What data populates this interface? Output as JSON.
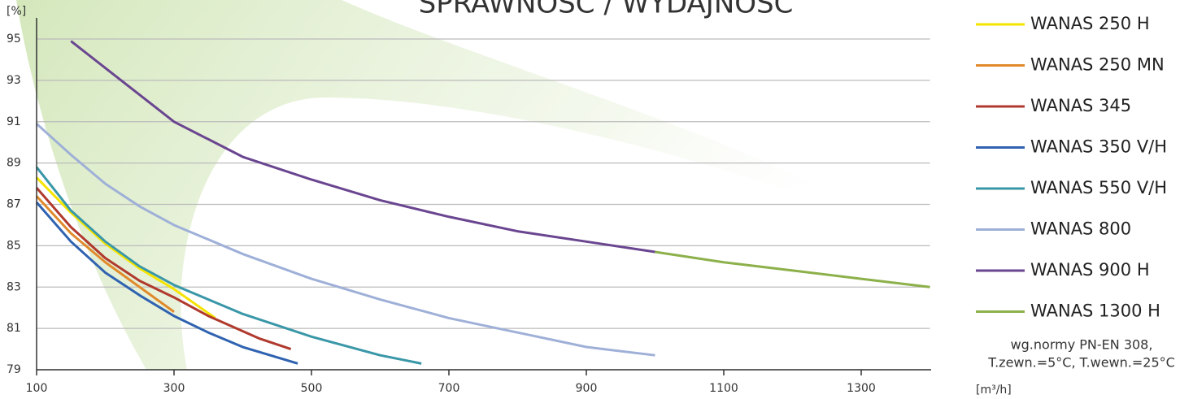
{
  "chart_data": {
    "type": "line",
    "title": "SPRAWNOŚĆ / WYDAJNOŚĆ",
    "y_label": "[%]",
    "x_label": "[m³/h]",
    "note": [
      "wg.normy PN-EN 308,",
      "T.zewn.=5°C, T.wewn.=25°C"
    ],
    "xlim": [
      100,
      1400
    ],
    "xticks": [
      100,
      300,
      500,
      700,
      900,
      1100,
      1300
    ],
    "ylim": [
      79,
      96
    ],
    "yticks": [
      79,
      81,
      83,
      85,
      87,
      89,
      91,
      93,
      95
    ],
    "grid": true,
    "legend": "right",
    "series": [
      {
        "name": "WANAS 250 H",
        "color": "#f5e400",
        "x": [
          100,
          150,
          200,
          250,
          300,
          360
        ],
        "values": [
          88.3,
          86.6,
          85.1,
          83.9,
          82.9,
          81.5
        ]
      },
      {
        "name": "WANAS 250 MN",
        "color": "#e08a2c",
        "x": [
          100,
          150,
          200,
          250,
          300
        ],
        "values": [
          87.4,
          85.6,
          84.2,
          83.0,
          81.8
        ]
      },
      {
        "name": "WANAS 345",
        "color": "#b03a2e",
        "x": [
          100,
          150,
          200,
          250,
          300,
          350,
          425,
          470
        ],
        "values": [
          87.8,
          85.9,
          84.4,
          83.3,
          82.5,
          81.6,
          80.5,
          80.0
        ]
      },
      {
        "name": "WANAS 350 V/H",
        "color": "#2f62b0",
        "x": [
          100,
          150,
          200,
          250,
          300,
          350,
          400,
          480
        ],
        "values": [
          87.1,
          85.2,
          83.7,
          82.6,
          81.6,
          80.8,
          80.1,
          79.3
        ]
      },
      {
        "name": "WANAS 550 V/H",
        "color": "#3a97a8",
        "x": [
          100,
          150,
          200,
          250,
          300,
          400,
          500,
          600,
          660
        ],
        "values": [
          88.8,
          86.7,
          85.2,
          84.0,
          83.1,
          81.7,
          80.6,
          79.7,
          79.3
        ]
      },
      {
        "name": "WANAS 800",
        "color": "#9fb0d8",
        "x": [
          100,
          150,
          200,
          250,
          300,
          400,
          500,
          600,
          700,
          800,
          900,
          1000
        ],
        "values": [
          90.9,
          89.4,
          88.0,
          86.9,
          86.0,
          84.6,
          83.4,
          82.4,
          81.5,
          80.8,
          80.1,
          79.7
        ]
      },
      {
        "name": "WANAS 900 H",
        "color": "#6a4590",
        "x": [
          150,
          200,
          300,
          400,
          500,
          600,
          700,
          800,
          900,
          1000
        ],
        "values": [
          94.9,
          93.6,
          91.0,
          89.3,
          88.2,
          87.2,
          86.4,
          85.7,
          85.2,
          84.7
        ]
      },
      {
        "name": "WANAS 1300 H",
        "color": "#8cb04a",
        "x": [
          1000,
          1100,
          1200,
          1300,
          1400
        ],
        "values": [
          84.7,
          84.2,
          83.8,
          83.4,
          83.0
        ]
      }
    ]
  }
}
